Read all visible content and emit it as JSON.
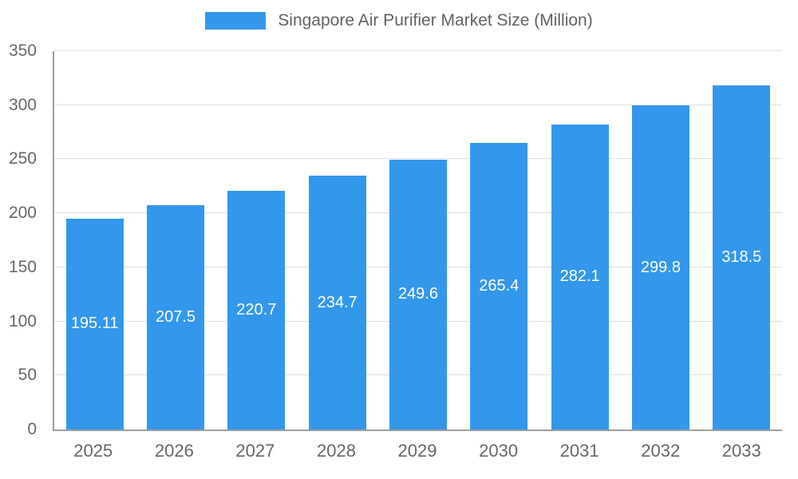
{
  "chart_data": {
    "type": "bar",
    "title": "Singapore Air Purifier Market Size (Million)",
    "categories": [
      "2025",
      "2026",
      "2027",
      "2028",
      "2029",
      "2030",
      "2031",
      "2032",
      "2033"
    ],
    "values": [
      195.11,
      207.5,
      220.7,
      234.7,
      249.6,
      265.4,
      282.1,
      299.8,
      318.5
    ],
    "value_labels": [
      "195.11",
      "207.5",
      "220.7",
      "234.7",
      "249.6",
      "265.4",
      "282.1",
      "299.8",
      "318.5"
    ],
    "xlabel": "",
    "ylabel": "",
    "ylim": [
      0,
      350
    ],
    "y_ticks": [
      0,
      50,
      100,
      150,
      200,
      250,
      300,
      350
    ],
    "grid": "horizontal",
    "legend_position": "top",
    "colors": {
      "bar": "#3398EC",
      "label_text": "#ffffff",
      "axis": "#9e9e9e",
      "gridline": "#e0e0e0",
      "tick_text": "#666666",
      "legend_text": "#616161",
      "background": "#ffffff"
    }
  }
}
